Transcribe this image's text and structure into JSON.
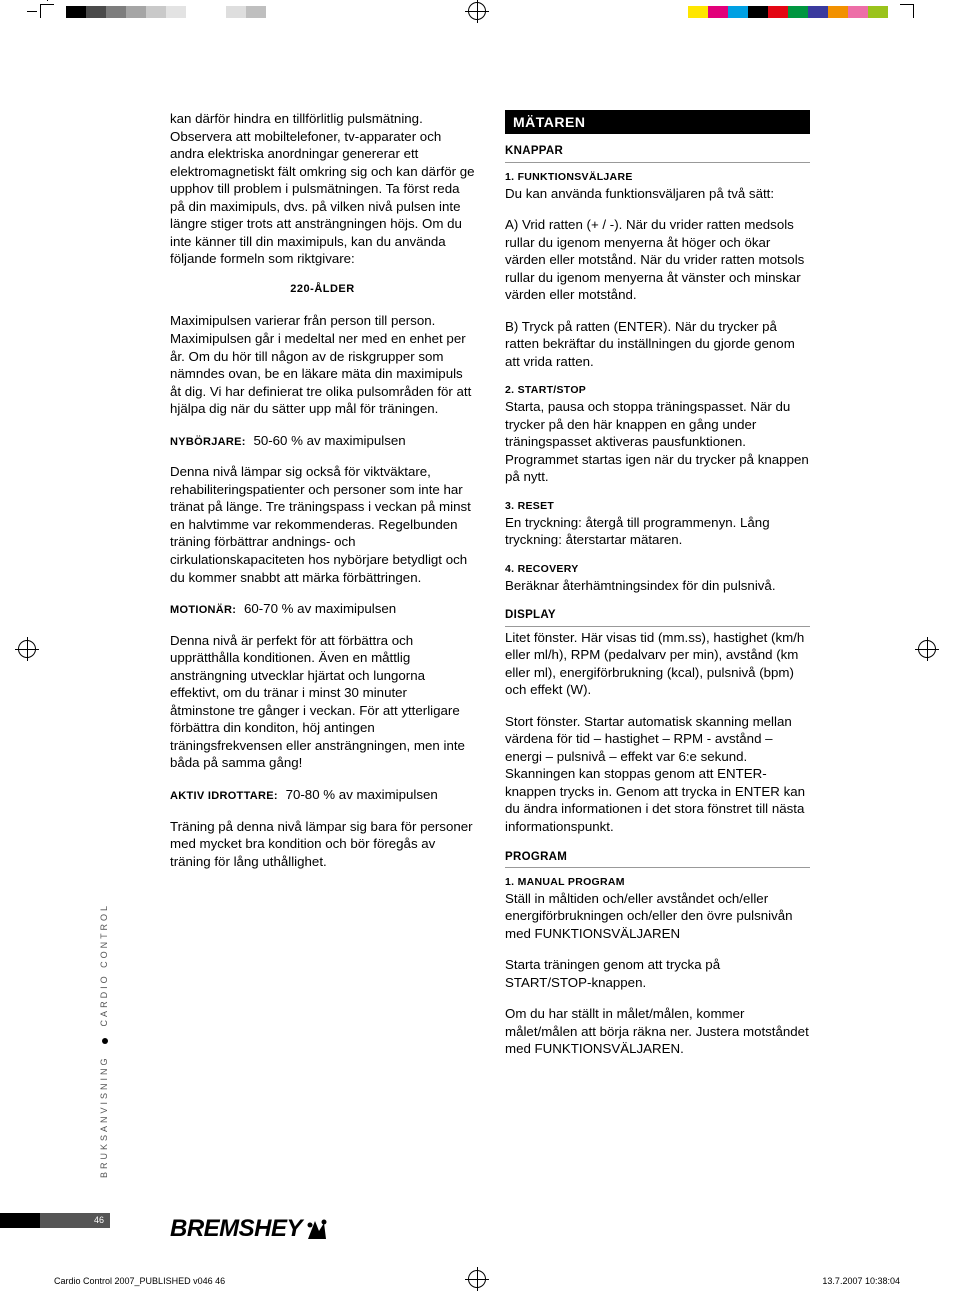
{
  "printbars": {
    "left_colors": [
      "#000000",
      "#4a4a4a",
      "#7d7d7d",
      "#a5a5a5",
      "#c9c9c9",
      "#e3e3e3",
      "#ffffff",
      "#ffffff",
      "#dedede",
      "#bfbfbf"
    ],
    "right_colors": [
      "#ffe600",
      "#e2007a",
      "#00a0e3",
      "#000000",
      "#e30613",
      "#009640",
      "#3a3a9e",
      "#f29100",
      "#ed6ea7",
      "#9ac31c"
    ]
  },
  "left": {
    "p1": "kan därför hindra en tillförlitlig pulsmätning. Observera att mobiltelefoner, tv-apparater och andra elektriska anordningar genererar ett elektromagnetiskt fält omkring sig och kan därför ge upphov till problem i pulsmätningen. Ta först reda på din maximipuls, dvs. på vilken nivå pulsen inte längre stiger trots att ansträngningen höjs. Om du inte känner till din maximipuls, kan du använda följande formeln som riktgivare:",
    "formula": "220-ÅLDER",
    "p2": "Maximipulsen varierar från person till person. Maximipulsen går i medeltal ner med en enhet per år. Om du hör till någon av de riskgrupper som nämndes ovan, be en läkare mäta din maximipuls åt dig. Vi har definierat tre olika pulsområden för att hjälpa dig när du sätter upp mål för träningen.",
    "nyb_label": "NYBÖRJARE:",
    "nyb_value": "50-60 % av maximipulsen",
    "p3": "Denna nivå lämpar sig också för viktväktare, rehabiliteringspatienter och personer som inte har tränat på länge. Tre träningspass i veckan på minst en halvtimme var rekommenderas. Regelbunden träning förbättrar andnings- och cirkulationskapaciteten hos nybörjare betydligt och du kommer snabbt att märka förbättringen.",
    "mot_label": "MOTIONÄR:",
    "mot_value": "60-70 % av maximipulsen",
    "p4": "Denna nivå är perfekt för att förbättra och upprätthålla konditionen. Även en måttlig ansträngning utvecklar hjärtat och lungorna effektivt, om du tränar i minst 30 minuter åtminstone tre gånger i veckan. För att ytterligare förbättra din konditon, höj antingen träningsfrekvensen eller ansträngningen, men inte båda på samma gång!",
    "akt_label": "AKTIV IDROTTARE:",
    "akt_value": "70-80 % av maximipulsen",
    "p5": "Träning på denna nivå lämpar sig bara för personer med mycket bra kondition och bör föregås av träning för lång uthållighet."
  },
  "right": {
    "section": "MÄTAREN",
    "knappar": "KNAPPAR",
    "f1_head": "1. FUNKTIONSVÄLJARE",
    "f1_body": "Du kan använda funktionsväljaren på två sätt:",
    "f1_a": "A) Vrid ratten (+ / -). När du vrider ratten medsols rullar du igenom menyerna åt höger och ökar värden eller motstånd. När du vrider ratten motsols rullar du igenom menyerna åt vänster och minskar värden eller motstånd.",
    "f1_b": "B) Tryck på ratten (ENTER). När du trycker på ratten bekräftar du inställningen du gjorde genom att vrida ratten.",
    "f2_head": "2. START/STOP",
    "f2_body": "Starta, pausa och stoppa träningspasset. När du trycker på den här knappen en gång under träningspasset aktiveras pausfunktionen. Programmet startas igen när du trycker på knappen på nytt.",
    "f3_head": "3. RESET",
    "f3_body": "En tryckning: återgå till programmenyn. Lång tryckning: återstartar mätaren.",
    "f4_head": "4. RECOVERY",
    "f4_body": "Beräknar återhämtningsindex för din pulsnivå.",
    "display": "DISPLAY",
    "disp1": "Litet fönster. Här visas tid (mm.ss), hastighet (km/h eller ml/h), RPM (pedalvarv per min), avstånd (km eller ml), energiförbrukning (kcal), pulsnivå (bpm) och effekt (W).",
    "disp2": "Stort fönster. Startar automatisk skanning mellan värdena för tid – hastighet – RPM - avstånd – energi – pulsnivå – effekt var 6:e sekund. Skanningen kan stoppas genom att ENTER-knappen trycks in. Genom att trycka in ENTER kan du ändra informationen i det stora fönstret till nästa informationspunkt.",
    "program": "PROGRAM",
    "prog1_head": "1.   MANUAL PROGRAM",
    "prog1_a": "Ställ in måltiden och/eller avståndet och/eller energiförbrukningen och/eller den övre pulsnivån med FUNKTIONSVÄLJAREN",
    "prog1_b": "Starta träningen genom att trycka på START/STOP-knappen.",
    "prog1_c": "Om du har ställt in målet/målen, kommer målet/målen att börja räkna ner. Justera motståndet med FUNKTIONSVÄLJAREN."
  },
  "sidebar": {
    "text_a": "BRUKSANVISNING",
    "text_b": "CARDIO CONTROL"
  },
  "page_number": "46",
  "logo_text": "BREMSHEY",
  "footer": {
    "left": "Cardio Control 2007_PUBLISHED v046   46",
    "right": "13.7.2007   10:38:04"
  }
}
